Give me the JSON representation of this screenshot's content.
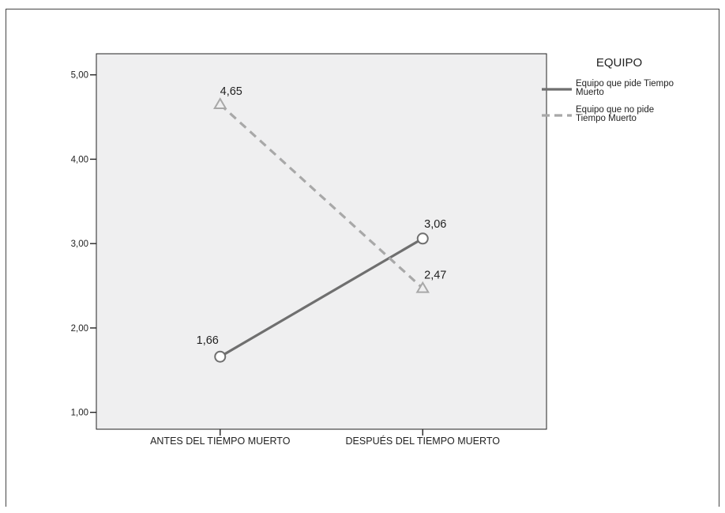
{
  "chart_data": {
    "type": "line",
    "categories": [
      "ANTES DEL TIEMPO MUERTO",
      "DESPUÉS DEL TIEMPO MUERTO"
    ],
    "ylim": [
      0.8,
      5.25
    ],
    "yticks": [
      "1,00",
      "2,00",
      "3,00",
      "4,00",
      "5,00"
    ],
    "ytick_values": [
      1,
      2,
      3,
      4,
      5
    ],
    "grid": false,
    "legend": {
      "title": "EQUIPO",
      "placement": "right"
    },
    "series": [
      {
        "name": "Equipo que pide Tiempo Muerto",
        "name_lines": [
          "Equipo que pide Tiempo",
          "Muerto"
        ],
        "values": [
          1.66,
          3.06
        ],
        "labels": [
          "1,66",
          "3,06"
        ],
        "color": "#6f6f6f",
        "line_style": "solid",
        "marker": "circle"
      },
      {
        "name": "Equipo que no pide Tiempo Muerto",
        "name_lines": [
          "Equipo que no pide",
          "Tiempo Muerto"
        ],
        "values": [
          4.65,
          2.47
        ],
        "labels": [
          "4,65",
          "2,47"
        ],
        "color": "#a8a8a8",
        "line_style": "dashed",
        "marker": "triangle"
      }
    ],
    "plot_background": "#efeff0"
  }
}
